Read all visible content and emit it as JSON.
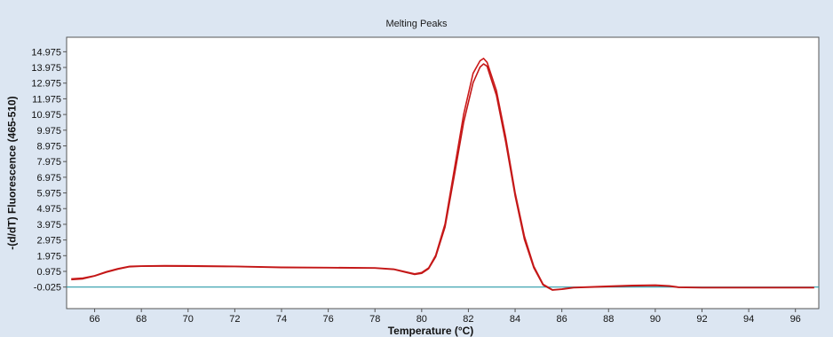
{
  "chart_data": {
    "type": "line",
    "title": "Melting Peaks",
    "xlabel": "Temperature (°C)",
    "ylabel": "-(d/dT) Fluorescence (465-510)",
    "xlim": [
      64.8,
      97
    ],
    "ylim": [
      -1.4,
      15.9
    ],
    "x_ticks": [
      66,
      68,
      70,
      72,
      74,
      76,
      78,
      80,
      82,
      84,
      86,
      88,
      90,
      92,
      94,
      96
    ],
    "y_ticks": [
      "14.975",
      "13.975",
      "12.975",
      "11.975",
      "10.975",
      "9.975",
      "8.975",
      "7.975",
      "6.975",
      "5.975",
      "4.975",
      "3.975",
      "2.975",
      "1.975",
      "0.975",
      "-0.025"
    ],
    "y_tick_values": [
      14.975,
      13.975,
      12.975,
      11.975,
      10.975,
      9.975,
      8.975,
      7.975,
      6.975,
      5.975,
      4.975,
      3.975,
      2.975,
      1.975,
      0.975,
      -0.025
    ],
    "grid": false,
    "series": [
      {
        "color": "#cc1a1a",
        "points": [
          [
            65.0,
            0.5
          ],
          [
            65.5,
            0.55
          ],
          [
            66.0,
            0.7
          ],
          [
            66.5,
            0.95
          ],
          [
            67.0,
            1.15
          ],
          [
            67.5,
            1.3
          ],
          [
            68.0,
            1.32
          ],
          [
            69.0,
            1.34
          ],
          [
            70.0,
            1.33
          ],
          [
            72.0,
            1.3
          ],
          [
            74.0,
            1.24
          ],
          [
            76.0,
            1.22
          ],
          [
            78.0,
            1.2
          ],
          [
            78.8,
            1.12
          ],
          [
            79.3,
            0.95
          ],
          [
            79.7,
            0.82
          ],
          [
            80.0,
            0.9
          ],
          [
            80.3,
            1.2
          ],
          [
            80.6,
            2.0
          ],
          [
            81.0,
            4.0
          ],
          [
            81.4,
            7.5
          ],
          [
            81.8,
            11.0
          ],
          [
            82.2,
            13.6
          ],
          [
            82.5,
            14.4
          ],
          [
            82.65,
            14.55
          ],
          [
            82.8,
            14.3
          ],
          [
            83.2,
            12.5
          ],
          [
            83.6,
            9.5
          ],
          [
            84.0,
            6.0
          ],
          [
            84.4,
            3.2
          ],
          [
            84.8,
            1.3
          ],
          [
            85.2,
            0.15
          ],
          [
            85.6,
            -0.2
          ],
          [
            86.0,
            -0.15
          ],
          [
            86.5,
            -0.05
          ],
          [
            88.0,
            0.03
          ],
          [
            89.0,
            0.08
          ],
          [
            90.0,
            0.1
          ],
          [
            90.6,
            0.05
          ],
          [
            91.0,
            -0.03
          ],
          [
            92.0,
            -0.05
          ],
          [
            94.0,
            -0.05
          ],
          [
            96.0,
            -0.05
          ],
          [
            96.8,
            -0.05
          ]
        ]
      },
      {
        "color": "#c21717",
        "points": [
          [
            65.0,
            0.45
          ],
          [
            65.5,
            0.5
          ],
          [
            66.0,
            0.68
          ],
          [
            66.5,
            0.92
          ],
          [
            67.0,
            1.12
          ],
          [
            67.5,
            1.27
          ],
          [
            68.0,
            1.3
          ],
          [
            69.0,
            1.31
          ],
          [
            70.0,
            1.3
          ],
          [
            72.0,
            1.28
          ],
          [
            74.0,
            1.22
          ],
          [
            76.0,
            1.2
          ],
          [
            78.0,
            1.18
          ],
          [
            78.8,
            1.1
          ],
          [
            79.3,
            0.92
          ],
          [
            79.7,
            0.78
          ],
          [
            80.0,
            0.85
          ],
          [
            80.3,
            1.15
          ],
          [
            80.6,
            1.9
          ],
          [
            81.0,
            3.8
          ],
          [
            81.4,
            7.1
          ],
          [
            81.8,
            10.5
          ],
          [
            82.2,
            13.0
          ],
          [
            82.5,
            14.0
          ],
          [
            82.65,
            14.2
          ],
          [
            82.8,
            14.05
          ],
          [
            83.2,
            12.2
          ],
          [
            83.6,
            9.2
          ],
          [
            84.0,
            5.8
          ],
          [
            84.4,
            3.0
          ],
          [
            84.8,
            1.2
          ],
          [
            85.2,
            0.1
          ],
          [
            85.6,
            -0.22
          ],
          [
            86.0,
            -0.17
          ],
          [
            86.5,
            -0.07
          ],
          [
            88.0,
            0.0
          ],
          [
            89.0,
            0.05
          ],
          [
            90.0,
            0.07
          ],
          [
            90.6,
            0.03
          ],
          [
            91.0,
            -0.05
          ],
          [
            92.0,
            -0.07
          ],
          [
            94.0,
            -0.07
          ],
          [
            96.0,
            -0.07
          ],
          [
            96.8,
            -0.07
          ]
        ]
      }
    ],
    "baseline": {
      "y": -0.025,
      "color": "#2a9aa8"
    }
  }
}
